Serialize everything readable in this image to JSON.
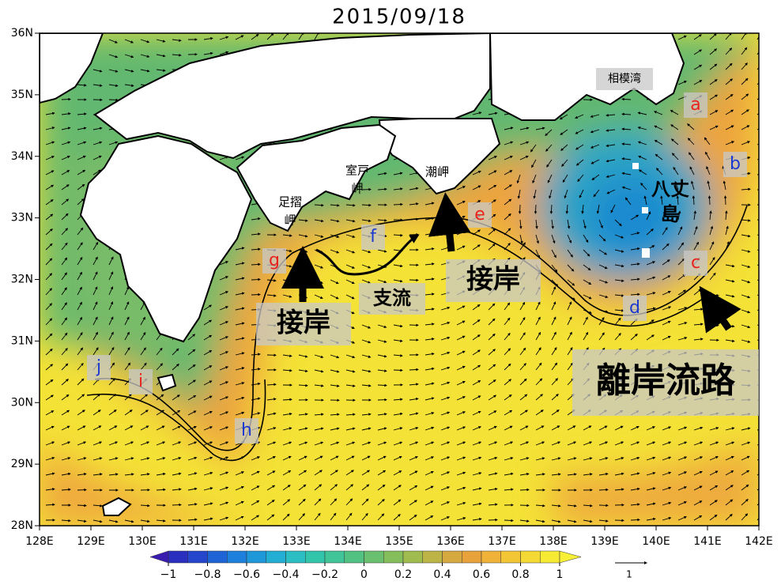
{
  "title": "2015/09/18",
  "axes": {
    "xticks": [
      {
        "value": 128,
        "label": "128E"
      },
      {
        "value": 129,
        "label": "129E"
      },
      {
        "value": 130,
        "label": "130E"
      },
      {
        "value": 131,
        "label": "131E"
      },
      {
        "value": 132,
        "label": "132E"
      },
      {
        "value": 133,
        "label": "133E"
      },
      {
        "value": 134,
        "label": "134E"
      },
      {
        "value": 135,
        "label": "135E"
      },
      {
        "value": 136,
        "label": "136E"
      },
      {
        "value": 137,
        "label": "137E"
      },
      {
        "value": 138,
        "label": "138E"
      },
      {
        "value": 139,
        "label": "139E"
      },
      {
        "value": 140,
        "label": "140E"
      },
      {
        "value": 141,
        "label": "141E"
      },
      {
        "value": 142,
        "label": "142E"
      }
    ],
    "yticks": [
      {
        "value": 28,
        "label": "28N"
      },
      {
        "value": 29,
        "label": "29N"
      },
      {
        "value": 30,
        "label": "30N"
      },
      {
        "value": 31,
        "label": "31N"
      },
      {
        "value": 32,
        "label": "32N"
      },
      {
        "value": 33,
        "label": "33N"
      },
      {
        "value": 34,
        "label": "34N"
      },
      {
        "value": 35,
        "label": "35N"
      },
      {
        "value": 36,
        "label": "36N"
      }
    ]
  },
  "place_names": [
    {
      "lines": [
        "相模湾"
      ]
    },
    {
      "lines": [
        "室戸",
        "岬"
      ]
    },
    {
      "lines": [
        "潮岬"
      ]
    },
    {
      "lines": [
        "足摺",
        "岬"
      ]
    },
    {
      "lines": [
        "八丈",
        "島"
      ]
    }
  ],
  "points": [
    {
      "label": "a",
      "color": "#e8231c"
    },
    {
      "label": "b",
      "color": "#1c3ad0"
    },
    {
      "label": "c",
      "color": "#e8231c"
    },
    {
      "label": "d",
      "color": "#1c3ad0"
    },
    {
      "label": "e",
      "color": "#e8231c"
    },
    {
      "label": "f",
      "color": "#1c3ad0"
    },
    {
      "label": "g",
      "color": "#e8231c"
    },
    {
      "label": "h",
      "color": "#1c3ad0"
    },
    {
      "label": "i",
      "color": "#e8231c"
    },
    {
      "label": "j",
      "color": "#1c3ad0"
    }
  ],
  "annotations": [
    {
      "text": "接岸"
    },
    {
      "text": "接岸"
    },
    {
      "text": "支流"
    },
    {
      "text": "離岸流路"
    }
  ],
  "colorbar": {
    "ticks": [
      {
        "value": -1,
        "label": "−1"
      },
      {
        "value": -0.8,
        "label": "−0.8"
      },
      {
        "value": -0.6,
        "label": "−0.6"
      },
      {
        "value": -0.4,
        "label": "−0.4"
      },
      {
        "value": -0.2,
        "label": "−0.2"
      },
      0,
      0.2,
      0.4,
      0.6,
      0.8,
      1
    ]
  },
  "reference_vector": {
    "label": "1"
  }
}
